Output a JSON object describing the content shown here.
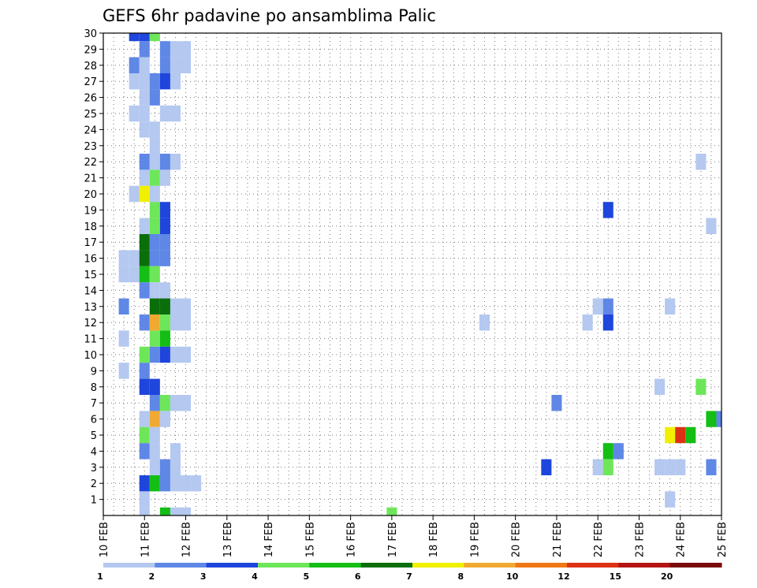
{
  "chart_data": {
    "type": "heatmap",
    "title": "GEFS 6hr padavine po ansamblima Palic",
    "x_tick_labels": [
      "10 FEB",
      "11 FEB",
      "12 FEB",
      "13 FEB",
      "14 FEB",
      "15 FEB",
      "16 FEB",
      "17 FEB",
      "18 FEB",
      "19 FEB",
      "20 FEB",
      "21 FEB",
      "22 FEB",
      "23 FEB",
      "24 FEB",
      "25 FEB"
    ],
    "x_range_days": [
      10,
      25
    ],
    "y_tick_labels": [
      "1",
      "2",
      "3",
      "4",
      "5",
      "6",
      "7",
      "8",
      "9",
      "10",
      "11",
      "12",
      "13",
      "14",
      "15",
      "16",
      "17",
      "18",
      "19",
      "20",
      "21",
      "22",
      "23",
      "24",
      "25",
      "26",
      "27",
      "28",
      "29",
      "30"
    ],
    "y_range": [
      0,
      30
    ],
    "grid": "dotted",
    "legend": {
      "position": "bottom",
      "thresholds": [
        "1",
        "2",
        "3",
        "4",
        "5",
        "6",
        "7",
        "8",
        "10",
        "12",
        "15",
        "20"
      ],
      "colors": [
        "#b4c8f0",
        "#5f87e6",
        "#1e46dc",
        "#6ee65a",
        "#14be14",
        "#0a6e0a",
        "#f0f000",
        "#f0aa32",
        "#f07814",
        "#dc3214",
        "#b41414",
        "#780a0a"
      ]
    },
    "cells": [
      {
        "d": 10.75,
        "m": 30,
        "c": 2
      },
      {
        "d": 11.0,
        "m": 30,
        "c": 2
      },
      {
        "d": 11.25,
        "m": 30,
        "c": 3
      },
      {
        "d": 11.0,
        "m": 29,
        "c": 1
      },
      {
        "d": 11.5,
        "m": 29,
        "c": 1
      },
      {
        "d": 11.75,
        "m": 29,
        "c": 0
      },
      {
        "d": 12.0,
        "m": 29,
        "c": 0
      },
      {
        "d": 10.75,
        "m": 28,
        "c": 1
      },
      {
        "d": 11.0,
        "m": 28,
        "c": 0
      },
      {
        "d": 11.5,
        "m": 28,
        "c": 1
      },
      {
        "d": 11.75,
        "m": 28,
        "c": 0
      },
      {
        "d": 12.0,
        "m": 28,
        "c": 0
      },
      {
        "d": 10.75,
        "m": 27,
        "c": 0
      },
      {
        "d": 11.0,
        "m": 27,
        "c": 0
      },
      {
        "d": 11.25,
        "m": 27,
        "c": 1
      },
      {
        "d": 11.5,
        "m": 27,
        "c": 2
      },
      {
        "d": 11.75,
        "m": 27,
        "c": 0
      },
      {
        "d": 11.0,
        "m": 26,
        "c": 0
      },
      {
        "d": 11.25,
        "m": 26,
        "c": 1
      },
      {
        "d": 10.75,
        "m": 25,
        "c": 0
      },
      {
        "d": 11.0,
        "m": 25,
        "c": 0
      },
      {
        "d": 11.5,
        "m": 25,
        "c": 0
      },
      {
        "d": 11.75,
        "m": 25,
        "c": 0
      },
      {
        "d": 11.0,
        "m": 24,
        "c": 0
      },
      {
        "d": 11.25,
        "m": 24,
        "c": 0
      },
      {
        "d": 11.25,
        "m": 23,
        "c": 0
      },
      {
        "d": 11.0,
        "m": 22,
        "c": 1
      },
      {
        "d": 11.25,
        "m": 22,
        "c": 0
      },
      {
        "d": 11.5,
        "m": 22,
        "c": 1
      },
      {
        "d": 11.75,
        "m": 22,
        "c": 0
      },
      {
        "d": 24.5,
        "m": 22,
        "c": 0
      },
      {
        "d": 11.0,
        "m": 21,
        "c": 0
      },
      {
        "d": 11.25,
        "m": 21,
        "c": 3
      },
      {
        "d": 11.5,
        "m": 21,
        "c": 0
      },
      {
        "d": 10.75,
        "m": 20,
        "c": 0
      },
      {
        "d": 11.0,
        "m": 20,
        "c": 6
      },
      {
        "d": 11.25,
        "m": 20,
        "c": 0
      },
      {
        "d": 11.25,
        "m": 19,
        "c": 3
      },
      {
        "d": 11.5,
        "m": 19,
        "c": 2
      },
      {
        "d": 22.25,
        "m": 19,
        "c": 2
      },
      {
        "d": 11.0,
        "m": 18,
        "c": 0
      },
      {
        "d": 11.25,
        "m": 18,
        "c": 3
      },
      {
        "d": 11.5,
        "m": 18,
        "c": 2
      },
      {
        "d": 24.75,
        "m": 18,
        "c": 0
      },
      {
        "d": 11.0,
        "m": 17,
        "c": 5
      },
      {
        "d": 11.25,
        "m": 17,
        "c": 1
      },
      {
        "d": 11.5,
        "m": 17,
        "c": 1
      },
      {
        "d": 10.5,
        "m": 16,
        "c": 0
      },
      {
        "d": 10.75,
        "m": 16,
        "c": 0
      },
      {
        "d": 11.0,
        "m": 16,
        "c": 5
      },
      {
        "d": 11.25,
        "m": 16,
        "c": 1
      },
      {
        "d": 11.5,
        "m": 16,
        "c": 1
      },
      {
        "d": 10.5,
        "m": 15,
        "c": 0
      },
      {
        "d": 10.75,
        "m": 15,
        "c": 0
      },
      {
        "d": 11.0,
        "m": 15,
        "c": 4
      },
      {
        "d": 11.25,
        "m": 15,
        "c": 3
      },
      {
        "d": 11.0,
        "m": 14,
        "c": 1
      },
      {
        "d": 11.25,
        "m": 14,
        "c": 0
      },
      {
        "d": 11.5,
        "m": 14,
        "c": 0
      },
      {
        "d": 10.5,
        "m": 13,
        "c": 1
      },
      {
        "d": 11.25,
        "m": 13,
        "c": 5
      },
      {
        "d": 11.5,
        "m": 13,
        "c": 5
      },
      {
        "d": 11.75,
        "m": 13,
        "c": 0
      },
      {
        "d": 12.0,
        "m": 13,
        "c": 0
      },
      {
        "d": 22.0,
        "m": 13,
        "c": 0
      },
      {
        "d": 22.25,
        "m": 13,
        "c": 1
      },
      {
        "d": 23.75,
        "m": 13,
        "c": 0
      },
      {
        "d": 11.0,
        "m": 12,
        "c": 1
      },
      {
        "d": 11.25,
        "m": 12,
        "c": 7
      },
      {
        "d": 11.5,
        "m": 12,
        "c": 3
      },
      {
        "d": 11.75,
        "m": 12,
        "c": 0
      },
      {
        "d": 12.0,
        "m": 12,
        "c": 0
      },
      {
        "d": 19.25,
        "m": 12,
        "c": 0
      },
      {
        "d": 21.75,
        "m": 12,
        "c": 0
      },
      {
        "d": 22.25,
        "m": 12,
        "c": 2
      },
      {
        "d": 10.5,
        "m": 11,
        "c": 0
      },
      {
        "d": 11.25,
        "m": 11,
        "c": 3
      },
      {
        "d": 11.5,
        "m": 11,
        "c": 4
      },
      {
        "d": 11.0,
        "m": 10,
        "c": 3
      },
      {
        "d": 11.25,
        "m": 10,
        "c": 1
      },
      {
        "d": 11.5,
        "m": 10,
        "c": 2
      },
      {
        "d": 11.75,
        "m": 10,
        "c": 0
      },
      {
        "d": 12.0,
        "m": 10,
        "c": 0
      },
      {
        "d": 10.5,
        "m": 9,
        "c": 0
      },
      {
        "d": 11.0,
        "m": 9,
        "c": 1
      },
      {
        "d": 11.0,
        "m": 8,
        "c": 2
      },
      {
        "d": 11.25,
        "m": 8,
        "c": 2
      },
      {
        "d": 23.5,
        "m": 8,
        "c": 0
      },
      {
        "d": 24.5,
        "m": 8,
        "c": 3
      },
      {
        "d": 11.25,
        "m": 7,
        "c": 1
      },
      {
        "d": 11.5,
        "m": 7,
        "c": 3
      },
      {
        "d": 11.75,
        "m": 7,
        "c": 0
      },
      {
        "d": 12.0,
        "m": 7,
        "c": 0
      },
      {
        "d": 21.0,
        "m": 7,
        "c": 1
      },
      {
        "d": 11.0,
        "m": 6,
        "c": 0
      },
      {
        "d": 11.25,
        "m": 6,
        "c": 7
      },
      {
        "d": 11.5,
        "m": 6,
        "c": 0
      },
      {
        "d": 24.75,
        "m": 6,
        "c": 4
      },
      {
        "d": 25.0,
        "m": 6,
        "c": 1
      },
      {
        "d": 11.0,
        "m": 5,
        "c": 3
      },
      {
        "d": 11.25,
        "m": 5,
        "c": 0
      },
      {
        "d": 23.75,
        "m": 5,
        "c": 6
      },
      {
        "d": 24.0,
        "m": 5,
        "c": 9
      },
      {
        "d": 24.25,
        "m": 5,
        "c": 4
      },
      {
        "d": 11.0,
        "m": 4,
        "c": 1
      },
      {
        "d": 11.25,
        "m": 4,
        "c": 0
      },
      {
        "d": 11.75,
        "m": 4,
        "c": 0
      },
      {
        "d": 22.25,
        "m": 4,
        "c": 4
      },
      {
        "d": 22.5,
        "m": 4,
        "c": 1
      },
      {
        "d": 11.25,
        "m": 3,
        "c": 0
      },
      {
        "d": 11.5,
        "m": 3,
        "c": 1
      },
      {
        "d": 11.75,
        "m": 3,
        "c": 0
      },
      {
        "d": 20.75,
        "m": 3,
        "c": 2
      },
      {
        "d": 22.0,
        "m": 3,
        "c": 0
      },
      {
        "d": 22.25,
        "m": 3,
        "c": 3
      },
      {
        "d": 23.5,
        "m": 3,
        "c": 0
      },
      {
        "d": 23.75,
        "m": 3,
        "c": 0
      },
      {
        "d": 24.0,
        "m": 3,
        "c": 0
      },
      {
        "d": 24.75,
        "m": 3,
        "c": 1
      },
      {
        "d": 11.0,
        "m": 2,
        "c": 2
      },
      {
        "d": 11.25,
        "m": 2,
        "c": 4
      },
      {
        "d": 11.5,
        "m": 2,
        "c": 1
      },
      {
        "d": 11.75,
        "m": 2,
        "c": 0
      },
      {
        "d": 12.0,
        "m": 2,
        "c": 0
      },
      {
        "d": 12.25,
        "m": 2,
        "c": 0
      },
      {
        "d": 11.0,
        "m": 1,
        "c": 0
      },
      {
        "d": 23.75,
        "m": 1,
        "c": 0
      },
      {
        "d": 11.0,
        "m": 0,
        "c": 0
      },
      {
        "d": 11.5,
        "m": 0,
        "c": 4
      },
      {
        "d": 11.75,
        "m": 0,
        "c": 0
      },
      {
        "d": 12.0,
        "m": 0,
        "c": 0
      },
      {
        "d": 17.0,
        "m": 0,
        "c": 3
      }
    ]
  }
}
